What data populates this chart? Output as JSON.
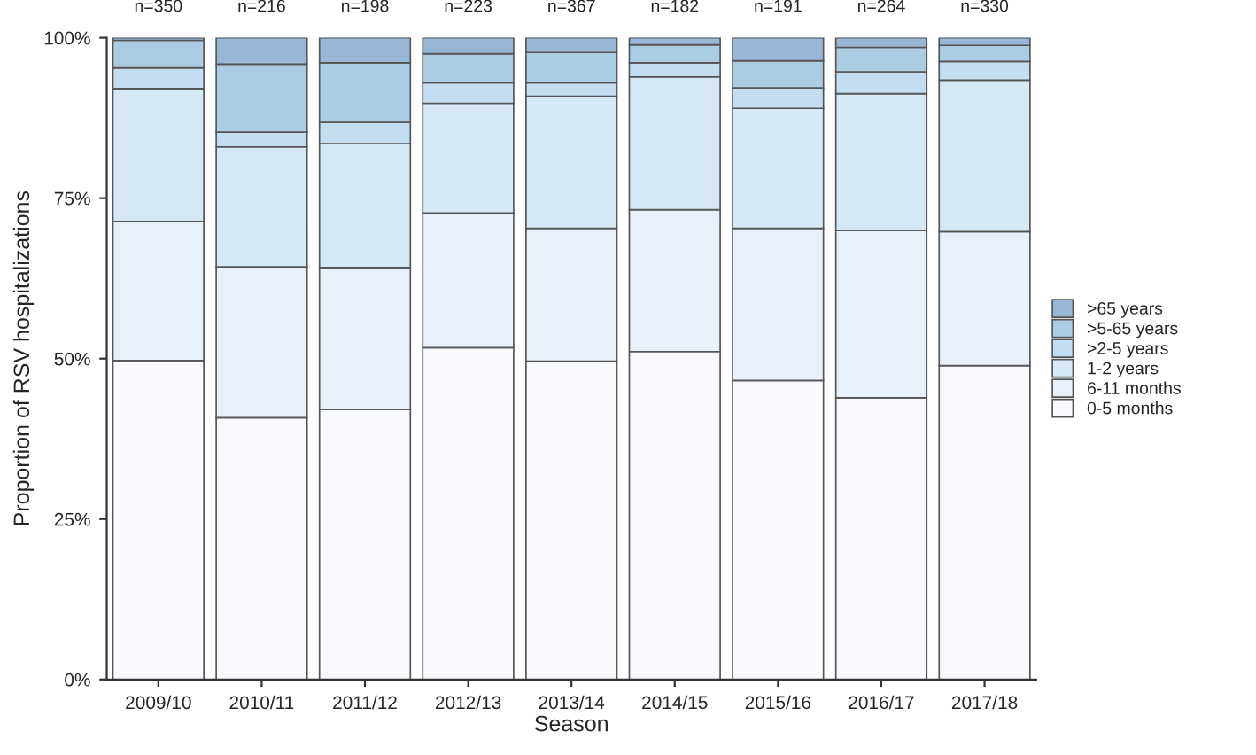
{
  "chart_data": {
    "type": "bar",
    "stacked": true,
    "xlabel": "Season",
    "ylabel": "Proportion of RSV hospitalizations",
    "categories": [
      "2009/10",
      "2010/11",
      "2011/12",
      "2012/13",
      "2013/14",
      "2014/15",
      "2015/16",
      "2016/17",
      "2017/18"
    ],
    "series": [
      {
        "name": "0-5 months",
        "color": "#f7f9fd",
        "values": [
          49.7,
          40.8,
          42.1,
          51.7,
          49.6,
          51.1,
          46.6,
          43.9,
          48.9
        ]
      },
      {
        "name": "6-11 months",
        "color": "#e8f0f9",
        "values": [
          21.7,
          23.5,
          22.1,
          21.0,
          20.7,
          22.1,
          23.7,
          26.1,
          20.9
        ]
      },
      {
        "name": "1-2 years",
        "color": "#d6e8f3",
        "values": [
          20.7,
          18.7,
          19.3,
          17.1,
          20.6,
          20.7,
          18.7,
          21.3,
          23.6
        ]
      },
      {
        "name": ">2-5 years",
        "color": "#c3def0",
        "values": [
          3.2,
          2.3,
          3.3,
          3.2,
          2.1,
          2.2,
          3.2,
          3.4,
          2.9
        ]
      },
      {
        "name": ">5-65 years",
        "color": "#abcde4",
        "values": [
          4.3,
          10.6,
          9.3,
          4.5,
          4.7,
          2.8,
          4.2,
          3.8,
          2.5
        ]
      },
      {
        "name": ">65 years",
        "color": "#98b6d6",
        "values": [
          0.4,
          4.1,
          3.9,
          2.5,
          2.3,
          1.1,
          3.6,
          1.5,
          1.2
        ]
      }
    ],
    "annotations": [
      "n=350",
      "n=216",
      "n=198",
      "n=223",
      "n=367",
      "n=182",
      "n=191",
      "n=264",
      "n=330"
    ],
    "ylim": [
      0,
      100
    ],
    "yticks": [
      {
        "value": 0,
        "label": "0%"
      },
      {
        "value": 25,
        "label": "25%"
      },
      {
        "value": 50,
        "label": "50%"
      },
      {
        "value": 75,
        "label": "75%"
      },
      {
        "value": 100,
        "label": "100%"
      }
    ],
    "grid": false,
    "legend": "right"
  }
}
